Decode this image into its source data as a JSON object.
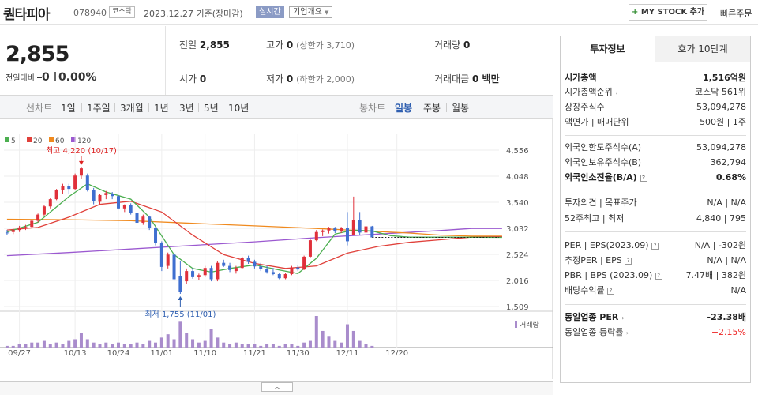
{
  "header": {
    "name": "퀀타피아",
    "code": "078940",
    "market": "코스닥",
    "date": "2023.12.27 기준(장마감)",
    "realtime_label": "실시간",
    "corp_label": "기업개요",
    "mystock_plus": "+",
    "mystock_label": "MY STOCK 추가",
    "fast_order": "빠른주문"
  },
  "price": {
    "current": "2,855",
    "change_label": "전일대비",
    "change_value": "0",
    "change_rate": "0.00%"
  },
  "quotes": {
    "prev_label": "전일",
    "prev": "2,855",
    "high_label": "고가",
    "high": "0",
    "upper_limit": "(상한가 3,710)",
    "volume_label": "거래량",
    "volume": "0",
    "open_label": "시가",
    "open": "0",
    "low_label": "저가",
    "low": "0",
    "lower_limit": "(하한가 2,000)",
    "amount_label": "거래대금",
    "amount": "0 백만"
  },
  "period_bar": {
    "line_label": "선차트",
    "periods": [
      "1일",
      "1주일",
      "3개월",
      "1년",
      "3년",
      "5년",
      "10년"
    ],
    "candle_label": "봉차트",
    "candles": [
      "일봉",
      "주봉",
      "월봉"
    ],
    "active_candle": "일봉"
  },
  "chart_data": {
    "type": "candlestick",
    "legend": [
      "5",
      "20",
      "60",
      "120"
    ],
    "legend_colors": [
      "#4caf50",
      "#e0403a",
      "#f08a1e",
      "#9b59d0"
    ],
    "y_ticks": [
      "4,556",
      "4,048",
      "3,540",
      "3,032",
      "2,524",
      "2,016",
      "1,509"
    ],
    "ylim": [
      1509,
      4556
    ],
    "x_ticks": [
      "09/27",
      "10/13",
      "10/24",
      "11/01",
      "11/10",
      "11/21",
      "11/30",
      "12/11",
      "12/20"
    ],
    "max_label": "최고 4,220 (10/17)",
    "min_label": "최저 1,755 (11/01)",
    "volume_label": "거래량",
    "up_color": "#e0303a",
    "down_color": "#3f6fd0",
    "candles": [
      [
        2950,
        3000,
        2900,
        2940
      ],
      [
        2960,
        3020,
        2920,
        3000
      ],
      [
        3000,
        3080,
        2960,
        3050
      ],
      [
        3040,
        3100,
        3000,
        3060
      ],
      [
        3060,
        3200,
        3040,
        3180
      ],
      [
        3180,
        3320,
        3150,
        3300
      ],
      [
        3300,
        3480,
        3280,
        3460
      ],
      [
        3460,
        3620,
        3420,
        3600
      ],
      [
        3600,
        3800,
        3580,
        3780
      ],
      [
        3780,
        3900,
        3700,
        3850
      ],
      [
        3850,
        3900,
        3700,
        3800
      ],
      [
        3800,
        4100,
        3780,
        4060
      ],
      [
        4060,
        4220,
        4000,
        4200
      ],
      [
        4060,
        4100,
        3750,
        3780
      ],
      [
        3780,
        3820,
        3500,
        3560
      ],
      [
        3550,
        3700,
        3500,
        3680
      ],
      [
        3680,
        3760,
        3600,
        3720
      ],
      [
        3700,
        3740,
        3600,
        3660
      ],
      [
        3660,
        3680,
        3400,
        3420
      ],
      [
        3420,
        3500,
        3350,
        3480
      ],
      [
        3480,
        3520,
        3300,
        3340
      ],
      [
        3340,
        3380,
        3100,
        3140
      ],
      [
        3140,
        3300,
        3100,
        3260
      ],
      [
        3260,
        3280,
        3000,
        3040
      ],
      [
        3040,
        3060,
        2700,
        2740
      ],
      [
        2740,
        2780,
        2200,
        2280
      ],
      [
        2300,
        2560,
        2250,
        2520
      ],
      [
        2520,
        2560,
        2000,
        2040
      ],
      [
        2100,
        2400,
        1755,
        1800
      ],
      [
        2000,
        2250,
        1950,
        2200
      ],
      [
        2200,
        2260,
        2050,
        2080
      ],
      [
        2080,
        2150,
        2020,
        2120
      ],
      [
        2120,
        2300,
        2080,
        2260
      ],
      [
        2260,
        2300,
        2000,
        2040
      ],
      [
        2040,
        2400,
        2000,
        2360
      ],
      [
        2360,
        2420,
        2280,
        2300
      ],
      [
        2300,
        2360,
        2180,
        2220
      ],
      [
        2200,
        2300,
        2150,
        2260
      ],
      [
        2260,
        2480,
        2240,
        2460
      ],
      [
        2460,
        2500,
        2340,
        2380
      ],
      [
        2380,
        2420,
        2250,
        2290
      ],
      [
        2290,
        2360,
        2200,
        2240
      ],
      [
        2240,
        2300,
        2150,
        2180
      ],
      [
        2180,
        2260,
        2120,
        2140
      ],
      [
        2140,
        2160,
        2040,
        2060
      ],
      [
        2060,
        2160,
        2040,
        2140
      ],
      [
        2140,
        2300,
        2120,
        2270
      ],
      [
        2270,
        2320,
        2200,
        2230
      ],
      [
        2230,
        2500,
        2220,
        2480
      ],
      [
        2480,
        2820,
        2460,
        2800
      ],
      [
        2800,
        3000,
        2780,
        2960
      ],
      [
        2960,
        3010,
        2880,
        2990
      ],
      [
        2990,
        3060,
        2930,
        3040
      ],
      [
        3040,
        3060,
        2940,
        2970
      ],
      [
        2970,
        3060,
        2940,
        3040
      ],
      [
        3040,
        3350,
        2700,
        2780
      ],
      [
        2900,
        3650,
        2900,
        3200
      ],
      [
        3200,
        3350,
        2900,
        2950
      ],
      [
        2950,
        3100,
        2930,
        3070
      ],
      [
        3070,
        3080,
        2855,
        2855
      ]
    ],
    "ma5_line": [
      [
        0,
        2960
      ],
      [
        5,
        3150
      ],
      [
        10,
        3650
      ],
      [
        13,
        3900
      ],
      [
        16,
        3740
      ],
      [
        20,
        3600
      ],
      [
        23,
        3250
      ],
      [
        27,
        2520
      ],
      [
        30,
        2250
      ],
      [
        33,
        2180
      ],
      [
        36,
        2250
      ],
      [
        40,
        2320
      ],
      [
        44,
        2220
      ],
      [
        47,
        2150
      ],
      [
        50,
        2450
      ],
      [
        53,
        2920
      ],
      [
        56,
        3000
      ],
      [
        59,
        2980
      ],
      [
        62,
        2890
      ],
      [
        65,
        2860
      ],
      [
        72,
        2860
      ],
      [
        80,
        2855
      ]
    ],
    "ma20_line": [
      [
        0,
        3000
      ],
      [
        5,
        3050
      ],
      [
        10,
        3250
      ],
      [
        15,
        3500
      ],
      [
        20,
        3560
      ],
      [
        25,
        3350
      ],
      [
        30,
        2900
      ],
      [
        35,
        2520
      ],
      [
        40,
        2350
      ],
      [
        45,
        2250
      ],
      [
        50,
        2300
      ],
      [
        55,
        2550
      ],
      [
        60,
        2680
      ],
      [
        65,
        2760
      ],
      [
        70,
        2810
      ],
      [
        75,
        2860
      ],
      [
        80,
        2870
      ]
    ],
    "ma60_line": [
      [
        0,
        3210
      ],
      [
        10,
        3200
      ],
      [
        20,
        3180
      ],
      [
        30,
        3130
      ],
      [
        40,
        3080
      ],
      [
        50,
        3030
      ],
      [
        55,
        3000
      ],
      [
        60,
        2970
      ],
      [
        65,
        2940
      ],
      [
        70,
        2900
      ],
      [
        75,
        2880
      ],
      [
        80,
        2880
      ]
    ],
    "ma120_line": [
      [
        0,
        2500
      ],
      [
        10,
        2560
      ],
      [
        20,
        2630
      ],
      [
        30,
        2700
      ],
      [
        40,
        2770
      ],
      [
        50,
        2850
      ],
      [
        60,
        2920
      ],
      [
        70,
        2990
      ],
      [
        75,
        3030
      ],
      [
        80,
        3030
      ]
    ],
    "volume": [
      1,
      1,
      2,
      2,
      3,
      3,
      4,
      2,
      3,
      2,
      4,
      5,
      9,
      5,
      3,
      2,
      3,
      2,
      3,
      2,
      2,
      3,
      2,
      4,
      3,
      6,
      8,
      5,
      16,
      9,
      5,
      3,
      4,
      11,
      6,
      3,
      2,
      3,
      2,
      2,
      2,
      1,
      2,
      2,
      1,
      2,
      2,
      1,
      3,
      4,
      19,
      10,
      7,
      4,
      3,
      14,
      10,
      4,
      2,
      1
    ]
  },
  "right_panel": {
    "tab_info": "투자정보",
    "tab_hoga": "호가 10단계",
    "market_cap_label": "시가총액",
    "market_cap": "1,516억원",
    "market_cap_rank_label": "시가총액순위",
    "market_cap_rank": "코스닥 561위",
    "shares_label": "상장주식수",
    "shares": "53,094,278",
    "face_label": "액면가 | 매매단위",
    "face": "500원 | 1주",
    "foreign_limit_label": "외국인한도주식수(A)",
    "foreign_limit": "53,094,278",
    "foreign_hold_label": "외국인보유주식수(B)",
    "foreign_hold": "362,794",
    "foreign_ratio_label": "외국인소진율(B/A)",
    "foreign_ratio": "0.68%",
    "opinion_label": "투자의견 | 목표주가",
    "opinion": "N/A | N/A",
    "week52_label": "52주최고 | 최저",
    "week52": "4,840 | 795",
    "per_label": "PER | EPS(2023.09)",
    "per": "N/A | -302원",
    "est_per_label": "추정PER | EPS",
    "est_per": "N/A | N/A",
    "pbr_label": "PBR | BPS (2023.09)",
    "pbr": "7.47배 | 382원",
    "dividend_label": "배당수익률",
    "dividend": "N/A",
    "sector_per_label": "동일업종 PER",
    "sector_per": "-23.38배",
    "sector_rate_label": "동일업종 등락률",
    "sector_rate": "+2.15%"
  }
}
